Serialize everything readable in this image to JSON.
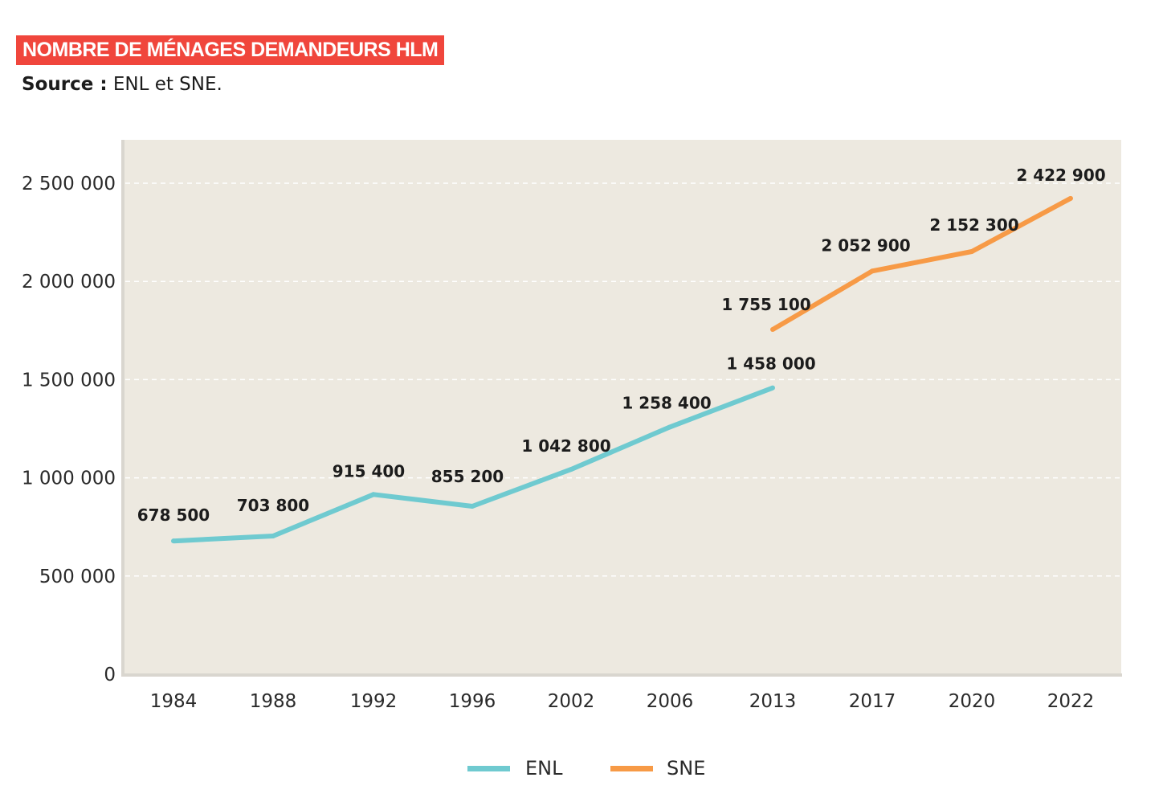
{
  "header": {
    "title": "NOMBRE DE MÉNAGES DEMANDEURS HLM",
    "source_label": "Source :",
    "source_text": "ENL et SNE."
  },
  "colors": {
    "title_bg": "#f0463c",
    "plot_bg": "#ede9e0",
    "enl": "#6fcad0",
    "sne": "#f79a46"
  },
  "chart_data": {
    "type": "line",
    "title": "NOMBRE DE MÉNAGES DEMANDEURS HLM",
    "xlabel": "",
    "ylabel": "",
    "categories": [
      "1984",
      "1988",
      "1992",
      "1996",
      "2002",
      "2006",
      "2013",
      "2017",
      "2020",
      "2022"
    ],
    "ylim": [
      0,
      2700000
    ],
    "yticks": [
      0,
      500000,
      1000000,
      1500000,
      2000000,
      2500000
    ],
    "ytick_labels": [
      "0",
      "500 000",
      "1 000 000",
      "1 500 000",
      "2 000 000",
      "2 500 000"
    ],
    "grid": "horizontal dashed",
    "legend_position": "bottom-center",
    "series": [
      {
        "name": "ENL",
        "color": "#6fcad0",
        "values": [
          678500,
          703800,
          915400,
          855200,
          1042800,
          1258400,
          1458000,
          null,
          null,
          null
        ],
        "labels": [
          "678 500",
          "703 800",
          "915 400",
          "855 200",
          "1 042 800",
          "1 258 400",
          "1 458 000",
          null,
          null,
          null
        ]
      },
      {
        "name": "SNE",
        "color": "#f79a46",
        "values": [
          null,
          null,
          null,
          null,
          null,
          null,
          1755100,
          2052900,
          2152300,
          2422900
        ],
        "labels": [
          null,
          null,
          null,
          null,
          null,
          null,
          "1 755 100",
          "2 052 900",
          "2 152 300",
          "2 422 900"
        ]
      }
    ]
  }
}
